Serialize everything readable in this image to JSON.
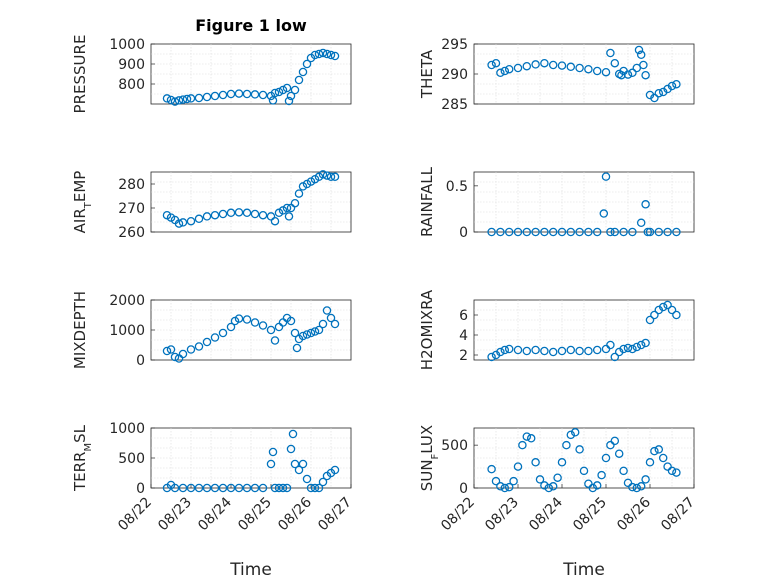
{
  "figure_title": "Figure 1 low",
  "chart_data": [
    {
      "type": "scatter",
      "title": "Figure 1 low",
      "ylabel": [
        "PRESSURE"
      ],
      "xlabel": "",
      "ylim": [
        700,
        1000
      ],
      "yticks": [
        800,
        900,
        1000
      ],
      "ytick_labels": [
        "800",
        "900",
        "1000"
      ],
      "xlim": [
        0,
        5
      ],
      "grid": true,
      "color": "#0072BD",
      "x": [
        0.4,
        0.5,
        0.6,
        0.7,
        0.8,
        0.9,
        1.0,
        1.2,
        1.4,
        1.6,
        1.8,
        2.0,
        2.2,
        2.4,
        2.6,
        2.8,
        3.0,
        3.05,
        3.1,
        3.2,
        3.3,
        3.4,
        3.45,
        3.5,
        3.6,
        3.7,
        3.8,
        3.9,
        4.0,
        4.1,
        4.2,
        4.3,
        4.4,
        4.5,
        4.6
      ],
      "y": [
        728,
        720,
        712,
        718,
        722,
        725,
        728,
        730,
        735,
        740,
        745,
        750,
        752,
        750,
        748,
        745,
        740,
        718,
        755,
        760,
        770,
        780,
        715,
        740,
        770,
        820,
        860,
        900,
        930,
        945,
        950,
        955,
        950,
        945,
        940
      ]
    },
    {
      "type": "scatter",
      "ylabel": [
        "THETA"
      ],
      "xlabel": "",
      "ylim": [
        285,
        295
      ],
      "yticks": [
        285,
        290,
        295
      ],
      "ytick_labels": [
        "285",
        "290",
        "295"
      ],
      "xlim": [
        0,
        5
      ],
      "grid": true,
      "color": "#0072BD",
      "x": [
        0.4,
        0.5,
        0.6,
        0.7,
        0.8,
        1.0,
        1.2,
        1.4,
        1.6,
        1.8,
        2.0,
        2.2,
        2.4,
        2.6,
        2.8,
        3.0,
        3.1,
        3.2,
        3.3,
        3.35,
        3.4,
        3.5,
        3.6,
        3.7,
        3.75,
        3.8,
        3.85,
        3.9,
        4.0,
        4.1,
        4.2,
        4.3,
        4.4,
        4.5,
        4.6
      ],
      "y": [
        291.5,
        291.8,
        290.2,
        290.5,
        290.8,
        291.0,
        291.3,
        291.6,
        291.8,
        291.5,
        291.4,
        291.2,
        291.0,
        290.8,
        290.5,
        290.3,
        293.5,
        291.8,
        290.0,
        289.8,
        290.5,
        289.9,
        290.2,
        291.0,
        294.0,
        293.2,
        291.5,
        289.8,
        286.5,
        286.0,
        286.8,
        287.0,
        287.5,
        288.0,
        288.3
      ]
    },
    {
      "type": "scatter",
      "ylabel": [
        "AIR",
        "T",
        "EMP"
      ],
      "xlabel": "",
      "ylim": [
        260,
        285
      ],
      "yticks": [
        260,
        270,
        280
      ],
      "ytick_labels": [
        "260",
        "270",
        "280"
      ],
      "xlim": [
        0,
        5
      ],
      "grid": true,
      "color": "#0072BD",
      "x": [
        0.4,
        0.5,
        0.6,
        0.7,
        0.8,
        1.0,
        1.2,
        1.4,
        1.6,
        1.8,
        2.0,
        2.2,
        2.4,
        2.6,
        2.8,
        3.0,
        3.1,
        3.2,
        3.3,
        3.4,
        3.45,
        3.5,
        3.6,
        3.7,
        3.8,
        3.9,
        4.0,
        4.1,
        4.2,
        4.3,
        4.4,
        4.5,
        4.6
      ],
      "y": [
        267,
        266,
        265,
        263.5,
        264,
        264.5,
        265.5,
        266.5,
        267,
        267.5,
        268,
        268.2,
        268,
        267.5,
        267,
        266.5,
        264.5,
        268,
        269,
        270,
        266.5,
        270,
        272,
        276,
        279,
        280,
        281,
        282,
        283,
        284,
        283.5,
        283,
        283
      ]
    },
    {
      "type": "scatter",
      "ylabel": [
        "RAINFALL"
      ],
      "xlabel": "",
      "ylim": [
        0,
        0.65
      ],
      "yticks": [
        0,
        0.5
      ],
      "ytick_labels": [
        "0",
        "0.5"
      ],
      "xlim": [
        0,
        5
      ],
      "grid": true,
      "color": "#0072BD",
      "x": [
        0.4,
        0.6,
        0.8,
        1.0,
        1.2,
        1.4,
        1.6,
        1.8,
        2.0,
        2.2,
        2.4,
        2.6,
        2.8,
        2.95,
        3.0,
        3.1,
        3.2,
        3.4,
        3.6,
        3.8,
        3.9,
        3.95,
        4.0,
        4.2,
        4.4,
        4.6
      ],
      "y": [
        0,
        0,
        0,
        0,
        0,
        0,
        0,
        0,
        0,
        0,
        0,
        0,
        0,
        0.2,
        0.6,
        0,
        0,
        0,
        0,
        0.1,
        0.3,
        0,
        0,
        0,
        0,
        0
      ]
    },
    {
      "type": "scatter",
      "ylabel": [
        "MIXDEPTH"
      ],
      "xlabel": "",
      "ylim": [
        0,
        2000
      ],
      "yticks": [
        0,
        1000,
        2000
      ],
      "ytick_labels": [
        "0",
        "1000",
        "2000"
      ],
      "xlim": [
        0,
        5
      ],
      "grid": true,
      "color": "#0072BD",
      "x": [
        0.4,
        0.5,
        0.6,
        0.7,
        0.8,
        1.0,
        1.2,
        1.4,
        1.6,
        1.8,
        2.0,
        2.1,
        2.2,
        2.4,
        2.6,
        2.8,
        3.0,
        3.1,
        3.2,
        3.3,
        3.4,
        3.5,
        3.6,
        3.65,
        3.7,
        3.8,
        3.9,
        4.0,
        4.1,
        4.2,
        4.3,
        4.4,
        4.5,
        4.6
      ],
      "y": [
        300,
        350,
        100,
        50,
        200,
        350,
        450,
        600,
        750,
        900,
        1100,
        1300,
        1380,
        1350,
        1250,
        1150,
        1000,
        650,
        1100,
        1250,
        1400,
        1300,
        900,
        400,
        700,
        800,
        850,
        900,
        950,
        1000,
        1200,
        1650,
        1400,
        1200
      ]
    },
    {
      "type": "scatter",
      "ylabel": [
        "H2OMIXRA"
      ],
      "xlabel": "",
      "ylim": [
        1.5,
        7.5
      ],
      "yticks": [
        2,
        4,
        6
      ],
      "ytick_labels": [
        "2",
        "4",
        "6"
      ],
      "xlim": [
        0,
        5
      ],
      "grid": true,
      "color": "#0072BD",
      "x": [
        0.4,
        0.5,
        0.6,
        0.7,
        0.8,
        1.0,
        1.2,
        1.4,
        1.6,
        1.8,
        2.0,
        2.2,
        2.4,
        2.6,
        2.8,
        3.0,
        3.1,
        3.2,
        3.3,
        3.4,
        3.5,
        3.6,
        3.7,
        3.8,
        3.9,
        4.0,
        4.1,
        4.2,
        4.3,
        4.4,
        4.5,
        4.6
      ],
      "y": [
        1.8,
        2.0,
        2.3,
        2.5,
        2.6,
        2.5,
        2.4,
        2.5,
        2.4,
        2.3,
        2.4,
        2.5,
        2.4,
        2.4,
        2.5,
        2.6,
        3.0,
        1.8,
        2.3,
        2.6,
        2.7,
        2.6,
        2.8,
        3.0,
        3.2,
        5.5,
        6.0,
        6.5,
        6.8,
        7.0,
        6.5,
        6.0
      ]
    },
    {
      "type": "scatter",
      "ylabel": [
        "TERR",
        "M",
        "SL"
      ],
      "xlabel": "Time",
      "ylim": [
        0,
        1000
      ],
      "yticks": [
        0,
        500,
        1000
      ],
      "ytick_labels": [
        "0",
        "500",
        "1000"
      ],
      "xlim": [
        0,
        5
      ],
      "xticks": [
        0,
        1,
        2,
        3,
        4,
        5
      ],
      "xtick_labels": [
        "08/22",
        "08/23",
        "08/24",
        "08/25",
        "08/26",
        "08/27"
      ],
      "grid": true,
      "color": "#0072BD",
      "x": [
        0.4,
        0.5,
        0.6,
        0.8,
        1.0,
        1.2,
        1.4,
        1.6,
        1.8,
        2.0,
        2.2,
        2.4,
        2.6,
        2.8,
        3.0,
        3.05,
        3.1,
        3.2,
        3.3,
        3.4,
        3.5,
        3.55,
        3.6,
        3.7,
        3.8,
        3.9,
        4.0,
        4.1,
        4.2,
        4.3,
        4.4,
        4.5,
        4.6
      ],
      "y": [
        0,
        50,
        0,
        0,
        0,
        0,
        0,
        0,
        0,
        0,
        0,
        0,
        0,
        0,
        400,
        600,
        0,
        0,
        0,
        0,
        650,
        900,
        400,
        300,
        400,
        150,
        0,
        0,
        0,
        100,
        200,
        250,
        300
      ]
    },
    {
      "type": "scatter",
      "ylabel": [
        "SUN",
        "F",
        "LUX"
      ],
      "xlabel": "Time",
      "ylim": [
        0,
        700
      ],
      "yticks": [
        0,
        500
      ],
      "ytick_labels": [
        "0",
        "500"
      ],
      "xlim": [
        0,
        5
      ],
      "xticks": [
        0,
        1,
        2,
        3,
        4,
        5
      ],
      "xtick_labels": [
        "08/22",
        "08/23",
        "08/24",
        "08/25",
        "08/26",
        "08/27"
      ],
      "grid": true,
      "color": "#0072BD",
      "x": [
        0.4,
        0.5,
        0.6,
        0.7,
        0.8,
        0.9,
        1.0,
        1.1,
        1.2,
        1.3,
        1.4,
        1.5,
        1.6,
        1.7,
        1.8,
        1.9,
        2.0,
        2.1,
        2.2,
        2.3,
        2.4,
        2.5,
        2.6,
        2.7,
        2.8,
        2.9,
        3.0,
        3.1,
        3.2,
        3.3,
        3.4,
        3.5,
        3.6,
        3.7,
        3.8,
        3.9,
        4.0,
        4.1,
        4.2,
        4.3,
        4.4,
        4.5,
        4.6
      ],
      "y": [
        220,
        80,
        20,
        0,
        10,
        80,
        250,
        500,
        600,
        580,
        300,
        100,
        30,
        0,
        20,
        120,
        300,
        500,
        620,
        650,
        450,
        200,
        50,
        0,
        30,
        150,
        350,
        500,
        550,
        400,
        200,
        60,
        10,
        0,
        20,
        100,
        300,
        430,
        450,
        350,
        250,
        200,
        180
      ]
    }
  ]
}
